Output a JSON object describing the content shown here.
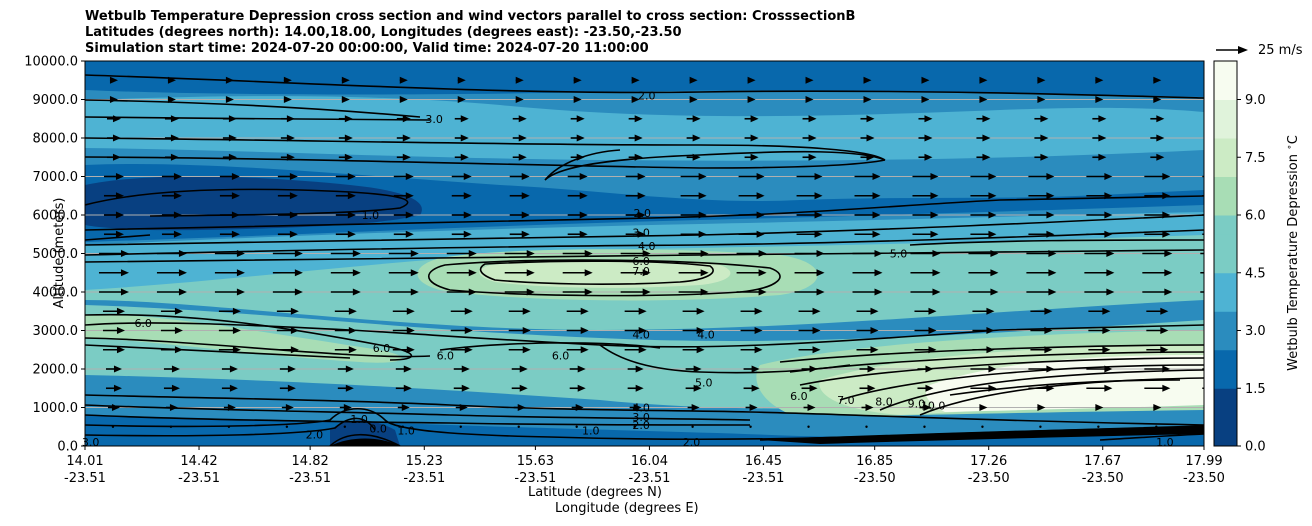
{
  "chart_data": {
    "type": "contourf_cross_section",
    "title_lines": [
      "Wetbulb Temperature Depression cross section and wind vectors parallel to cross section: CrosssectionB",
      "Latitudes (degrees north): 14.00,18.00, Longitudes (degrees east): -23.50,-23.50",
      "Simulation start time: 2024-07-20 00:00:00, Valid time: 2024-07-20 11:00:00"
    ],
    "ylabel": "Altitude (meters)",
    "xlabel_lat": "Latitude (degrees N)",
    "xlabel_lon": "Longitude (degrees E)",
    "ylim": [
      0,
      10000
    ],
    "y_ticks": [
      "0.0",
      "1000.0",
      "2000.0",
      "3000.0",
      "4000.0",
      "5000.0",
      "6000.0",
      "7000.0",
      "8000.0",
      "9000.0",
      "10000.0"
    ],
    "x_ticks": [
      {
        "lat": "14.01",
        "lon": "-23.51",
        "t": 0.0
      },
      {
        "lat": "14.42",
        "lon": "-23.51",
        "t": 0.1019
      },
      {
        "lat": "14.82",
        "lon": "-23.51",
        "t": 0.2012
      },
      {
        "lat": "15.23",
        "lon": "-23.51",
        "t": 0.3032
      },
      {
        "lat": "15.63",
        "lon": "-23.51",
        "t": 0.4025
      },
      {
        "lat": "16.04",
        "lon": "-23.51",
        "t": 0.5044
      },
      {
        "lat": "16.45",
        "lon": "-23.51",
        "t": 0.6063
      },
      {
        "lat": "16.85",
        "lon": "-23.50",
        "t": 0.7057
      },
      {
        "lat": "17.26",
        "lon": "-23.50",
        "t": 0.8076
      },
      {
        "lat": "17.67",
        "lon": "-23.50",
        "t": 0.9095
      },
      {
        "lat": "17.99",
        "lon": "-23.50",
        "t": 1.0
      }
    ],
    "colorbar": {
      "label": "Wetbulb Temperature Depression $^\\circ$C",
      "range": [
        0,
        10
      ],
      "ticks": [
        "0.0",
        "1.5",
        "3.0",
        "4.5",
        "6.0",
        "7.5",
        "9.0"
      ],
      "tick_values": [
        0,
        1.5,
        3.0,
        4.5,
        6.0,
        7.5,
        9.0
      ],
      "cmap": [
        "#084081",
        "#0868ac",
        "#2b8cbe",
        "#4eb3d3",
        "#7bccc4",
        "#a8ddb5",
        "#ccebc5",
        "#e0f3db",
        "#f7fcf0"
      ]
    },
    "quiver_key": "25 m/s",
    "contour_labels": [
      {
        "text": "2.0",
        "t": 0.502,
        "alt": 9100
      },
      {
        "text": "3.0",
        "t": 0.312,
        "alt": 8500
      },
      {
        "text": "1.0",
        "t": 0.255,
        "alt": 6000
      },
      {
        "text": "2.0",
        "t": 0.498,
        "alt": 6050
      },
      {
        "text": "3.0",
        "t": 0.497,
        "alt": 5550
      },
      {
        "text": "4.0",
        "t": 0.502,
        "alt": 5200
      },
      {
        "text": "5.0",
        "t": 0.727,
        "alt": 5000
      },
      {
        "text": "6.0",
        "t": 0.497,
        "alt": 4800
      },
      {
        "text": "7.0",
        "t": 0.497,
        "alt": 4550
      },
      {
        "text": "6.0",
        "t": 0.052,
        "alt": 3200
      },
      {
        "text": "4.0",
        "t": 0.497,
        "alt": 2900
      },
      {
        "text": "4.0",
        "t": 0.555,
        "alt": 2900
      },
      {
        "text": "6.0",
        "t": 0.265,
        "alt": 2550
      },
      {
        "text": "6.0",
        "t": 0.322,
        "alt": 2350
      },
      {
        "text": "6.0",
        "t": 0.425,
        "alt": 2350
      },
      {
        "text": "5.0",
        "t": 0.553,
        "alt": 1650
      },
      {
        "text": "6.0",
        "t": 0.638,
        "alt": 1300
      },
      {
        "text": "7.0",
        "t": 0.68,
        "alt": 1200
      },
      {
        "text": "8.0",
        "t": 0.714,
        "alt": 1150
      },
      {
        "text": "9.0",
        "t": 0.743,
        "alt": 1100
      },
      {
        "text": "10.0",
        "t": 0.758,
        "alt": 1050
      },
      {
        "text": "4.0",
        "t": 0.497,
        "alt": 1000
      },
      {
        "text": "3.0",
        "t": 0.497,
        "alt": 750
      },
      {
        "text": "2.0",
        "t": 0.497,
        "alt": 550
      },
      {
        "text": "2.0",
        "t": 0.205,
        "alt": 300
      },
      {
        "text": "1.0",
        "t": 0.245,
        "alt": 700
      },
      {
        "text": "0.0",
        "t": 0.262,
        "alt": 450
      },
      {
        "text": "1.0",
        "t": 0.287,
        "alt": 400
      },
      {
        "text": "1.0",
        "t": 0.452,
        "alt": 400
      },
      {
        "text": "2.0",
        "t": 0.542,
        "alt": 100
      },
      {
        "text": "1.0",
        "t": 0.965,
        "alt": 100
      },
      {
        "text": "3.0",
        "t": 0.005,
        "alt": 100
      }
    ]
  }
}
